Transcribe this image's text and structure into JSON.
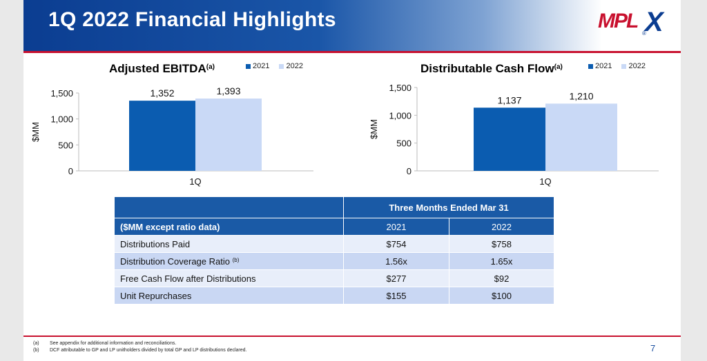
{
  "header": {
    "title": "1Q 2022 Financial Highlights",
    "logo_text": "MPLX",
    "logo_main": "MPL",
    "logo_x": "X",
    "logo_reg": "®"
  },
  "colors": {
    "series_2021": "#0b5cb0",
    "series_2022": "#c9d9f6",
    "header_blue": "#0b3d91",
    "accent_red": "#c8102e"
  },
  "chart_data": [
    {
      "type": "bar",
      "title": "Adjusted EBITDA",
      "title_sup": "(a)",
      "categories": [
        "1Q"
      ],
      "series": [
        {
          "name": "2021",
          "values": [
            1352
          ]
        },
        {
          "name": "2022",
          "values": [
            1393
          ]
        }
      ],
      "value_labels": [
        "1,352",
        "1,393"
      ],
      "ylabel": "$MM",
      "ylim": [
        0,
        1500
      ],
      "yticks": [
        0,
        500,
        1000,
        1500
      ],
      "ytick_labels": [
        "0",
        "500",
        "1,000",
        "1,500"
      ],
      "legend": "top-right",
      "grid": false
    },
    {
      "type": "bar",
      "title": "Distributable Cash Flow",
      "title_sup": "(a)",
      "categories": [
        "1Q"
      ],
      "series": [
        {
          "name": "2021",
          "values": [
            1137
          ]
        },
        {
          "name": "2022",
          "values": [
            1210
          ]
        }
      ],
      "value_labels": [
        "1,137",
        "1,210"
      ],
      "ylabel": "$MM",
      "ylim": [
        0,
        1500
      ],
      "yticks": [
        0,
        500,
        1000,
        1500
      ],
      "ytick_labels": [
        "0",
        "500",
        "1,000",
        "1,500"
      ],
      "legend": "top-right",
      "grid": false
    }
  ],
  "table": {
    "period_header": "Three Months Ended Mar 31",
    "label_header": "($MM except ratio data)",
    "years": [
      "2021",
      "2022"
    ],
    "rows": [
      {
        "label": "Distributions Paid",
        "sup": "",
        "v2021": "$754",
        "v2022": "$758"
      },
      {
        "label": "Distribution Coverage Ratio",
        "sup": "(b)",
        "v2021": "1.56x",
        "v2022": "1.65x"
      },
      {
        "label": "Free Cash Flow after Distributions",
        "sup": "",
        "v2021": "$277",
        "v2022": "$92"
      },
      {
        "label": "Unit Repurchases",
        "sup": "",
        "v2021": "$155",
        "v2022": "$100"
      }
    ]
  },
  "footnotes": [
    {
      "label": "(a)",
      "text": "See appendix for additional information and reconciliations."
    },
    {
      "label": "(b)",
      "text": "DCF attributable to GP and LP unitholders divided by total GP and LP distributions declared."
    }
  ],
  "page_number": "7"
}
